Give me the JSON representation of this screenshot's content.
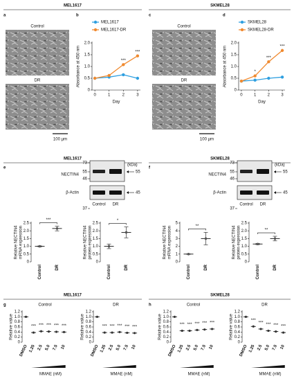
{
  "headers": [
    "MEL1617",
    "SKMEL28",
    "MEL1617",
    "SKMEL28",
    "MEL1617",
    "SKMEL28"
  ],
  "panel_labels": [
    "a",
    "b",
    "c",
    "d",
    "e",
    "f",
    "g",
    "h"
  ],
  "micrographs": [
    {
      "top": "Control",
      "bottom": "DR",
      "scale": "100 µm"
    },
    {
      "top": "Control",
      "bottom": "DR",
      "scale": "100 µm"
    }
  ],
  "blots": [
    {
      "markers": [
        "73",
        "55",
        "46",
        "37"
      ],
      "unit": "(kDa)",
      "target": "NECTIN4",
      "target_size": "55",
      "loading": "β-Actin",
      "loading_size": "45",
      "lanes": [
        "Control",
        "DR"
      ]
    },
    {
      "markers": [
        "73",
        "55",
        "46",
        "37"
      ],
      "unit": "(kDa)",
      "target": "NECTIN4",
      "target_size": "55",
      "loading": "β-Actin",
      "loading_size": "45",
      "lanes": [
        "Control",
        "DR"
      ]
    }
  ],
  "chart_data": [
    {
      "type": "line",
      "x": [
        0,
        1,
        2,
        3
      ],
      "xlim": [
        -0.2,
        3.2
      ],
      "xticks": [
        0,
        1,
        2,
        3
      ],
      "ylim": [
        0,
        2
      ],
      "yticks": [
        0,
        0.5,
        {
          "value": 1,
          "label": "1.0"
        },
        1.5,
        {
          "value": 2,
          "label": "2.0"
        }
      ],
      "xlabel": "Day",
      "ylabel": "Absorbance at 450 nm",
      "series": [
        {
          "name": "MEL1617",
          "color": "#2e9fe0",
          "values": [
            0.5,
            0.55,
            0.65,
            0.5
          ]
        },
        {
          "name": "MEL1617-DR",
          "color": "#f08a30",
          "values": [
            0.5,
            0.62,
            1.08,
            1.45
          ]
        }
      ],
      "annotations": [
        null,
        null,
        "***",
        "***"
      ]
    },
    {
      "type": "line",
      "x": [
        0,
        1,
        2,
        3
      ],
      "xlim": [
        -0.2,
        3.2
      ],
      "xticks": [
        0,
        1,
        2,
        3
      ],
      "ylim": [
        0,
        2
      ],
      "yticks": [
        0,
        0.5,
        {
          "value": 1,
          "label": "1.0"
        },
        1.5,
        {
          "value": 2,
          "label": "2.0"
        }
      ],
      "xlabel": "Day",
      "ylabel": "Absorbance at 450 nm",
      "series": [
        {
          "name": "SKMEL28",
          "color": "#2e9fe0",
          "values": [
            0.38,
            0.42,
            0.5,
            0.55
          ]
        },
        {
          "name": "SKMEL28-DR",
          "color": "#f08a30",
          "values": [
            0.38,
            0.6,
            1.2,
            1.68
          ]
        }
      ],
      "annotations": [
        null,
        "*",
        "***",
        "***"
      ]
    },
    {
      "type": "dot",
      "categories": [
        "Control",
        "DR"
      ],
      "values": [
        1.0,
        2.15
      ],
      "errors": [
        0.03,
        0.15
      ],
      "ylim": [
        0,
        2.5
      ],
      "yticks": [
        0,
        0.5,
        {
          "value": 1,
          "label": "1.0"
        },
        1.5,
        {
          "value": 2,
          "label": "2.0"
        },
        2.5
      ],
      "ylabel": [
        "Relative NECTIN4",
        "mRNA expression"
      ],
      "significance": "***"
    },
    {
      "type": "dot",
      "categories": [
        "Control",
        "DR"
      ],
      "values": [
        1.0,
        1.9
      ],
      "errors": [
        0.15,
        0.35
      ],
      "ylim": [
        0,
        2.5
      ],
      "yticks": [
        0,
        0.5,
        {
          "value": 1,
          "label": "1.0"
        },
        1.5,
        {
          "value": 2,
          "label": "2.0"
        },
        2.5
      ],
      "ylabel": [
        "Relative NECTIN4",
        "protein expression"
      ],
      "significance": "*"
    },
    {
      "type": "dot",
      "categories": [
        "Control",
        "DR"
      ],
      "values": [
        1.0,
        3.0
      ],
      "errors": [
        0.03,
        0.8
      ],
      "ylim": [
        0,
        5
      ],
      "yticks": [
        0,
        1,
        2,
        3,
        4,
        5
      ],
      "ylabel": [
        "Relative NECTIN4",
        "mRNA expression"
      ],
      "significance": "**"
    },
    {
      "type": "dot",
      "categories": [
        "Control",
        "DR"
      ],
      "values": [
        1.15,
        1.5
      ],
      "errors": [
        0.04,
        0.15
      ],
      "ylim": [
        0,
        2.5
      ],
      "yticks": [
        0,
        0.5,
        {
          "value": 1,
          "label": "1.0"
        },
        1.5,
        {
          "value": 2,
          "label": "2.0"
        },
        2.5
      ],
      "ylabel": [
        "Relative NECTIN4",
        "protein expression"
      ],
      "significance": "**"
    },
    {
      "type": "strip",
      "title": "Control",
      "categories": [
        "DMSO",
        "1.25",
        "2.5",
        "5.0",
        "7.5",
        "10"
      ],
      "values": [
        1.0,
        0.38,
        0.43,
        0.42,
        0.41,
        0.4
      ],
      "ylim": [
        0,
        1.2
      ],
      "yticks": [
        0,
        0.2,
        0.4,
        0.6,
        0.8,
        {
          "value": 1,
          "label": "1.0"
        },
        1.2
      ],
      "ylabel": "Relative value",
      "xlabel": "MMAE (nM)",
      "annotations": [
        null,
        "***",
        "***",
        "***",
        "***",
        "***"
      ]
    },
    {
      "type": "strip",
      "title": "DR",
      "categories": [
        "DMSO",
        "1.25",
        "2.5",
        "5.0",
        "7.5",
        "10"
      ],
      "values": [
        1.0,
        0.38,
        0.38,
        0.4,
        0.37,
        0.36
      ],
      "ylim": [
        0,
        1.2
      ],
      "yticks": [
        0,
        0.2,
        0.4,
        0.6,
        0.8,
        {
          "value": 1,
          "label": "1.0"
        },
        1.2
      ],
      "ylabel": "Relative value",
      "xlabel": "MMAE (nM)",
      "annotations": [
        null,
        "***",
        "***",
        "***",
        "***",
        "***"
      ]
    },
    {
      "type": "strip",
      "title": "Control",
      "categories": [
        "DMSO",
        "1.25",
        "2.5",
        "5.0",
        "7.5",
        "10"
      ],
      "values": [
        1.0,
        0.45,
        0.45,
        0.48,
        0.5,
        0.52
      ],
      "ylim": [
        0,
        1.2
      ],
      "yticks": [
        0,
        0.2,
        0.4,
        0.6,
        0.8,
        {
          "value": 1,
          "label": "1.0"
        },
        1.2
      ],
      "ylabel": "Relative value",
      "xlabel": "MMAE (nM)",
      "annotations": [
        null,
        "***",
        "***",
        "***",
        "***",
        "***"
      ]
    },
    {
      "type": "strip",
      "title": "DR",
      "categories": [
        "DMSO",
        "1.25",
        "2.5",
        "5.0",
        "7.5",
        "10"
      ],
      "values": [
        1.0,
        0.62,
        0.52,
        0.45,
        0.42,
        0.38
      ],
      "ylim": [
        0,
        1.2
      ],
      "yticks": [
        0,
        0.2,
        0.4,
        0.6,
        0.8,
        {
          "value": 1,
          "label": "1.0"
        },
        1.2
      ],
      "ylabel": "Relative value",
      "xlabel": "MMAE (nM)",
      "annotations": [
        null,
        "***",
        "***",
        "***",
        "***",
        "***"
      ]
    }
  ]
}
